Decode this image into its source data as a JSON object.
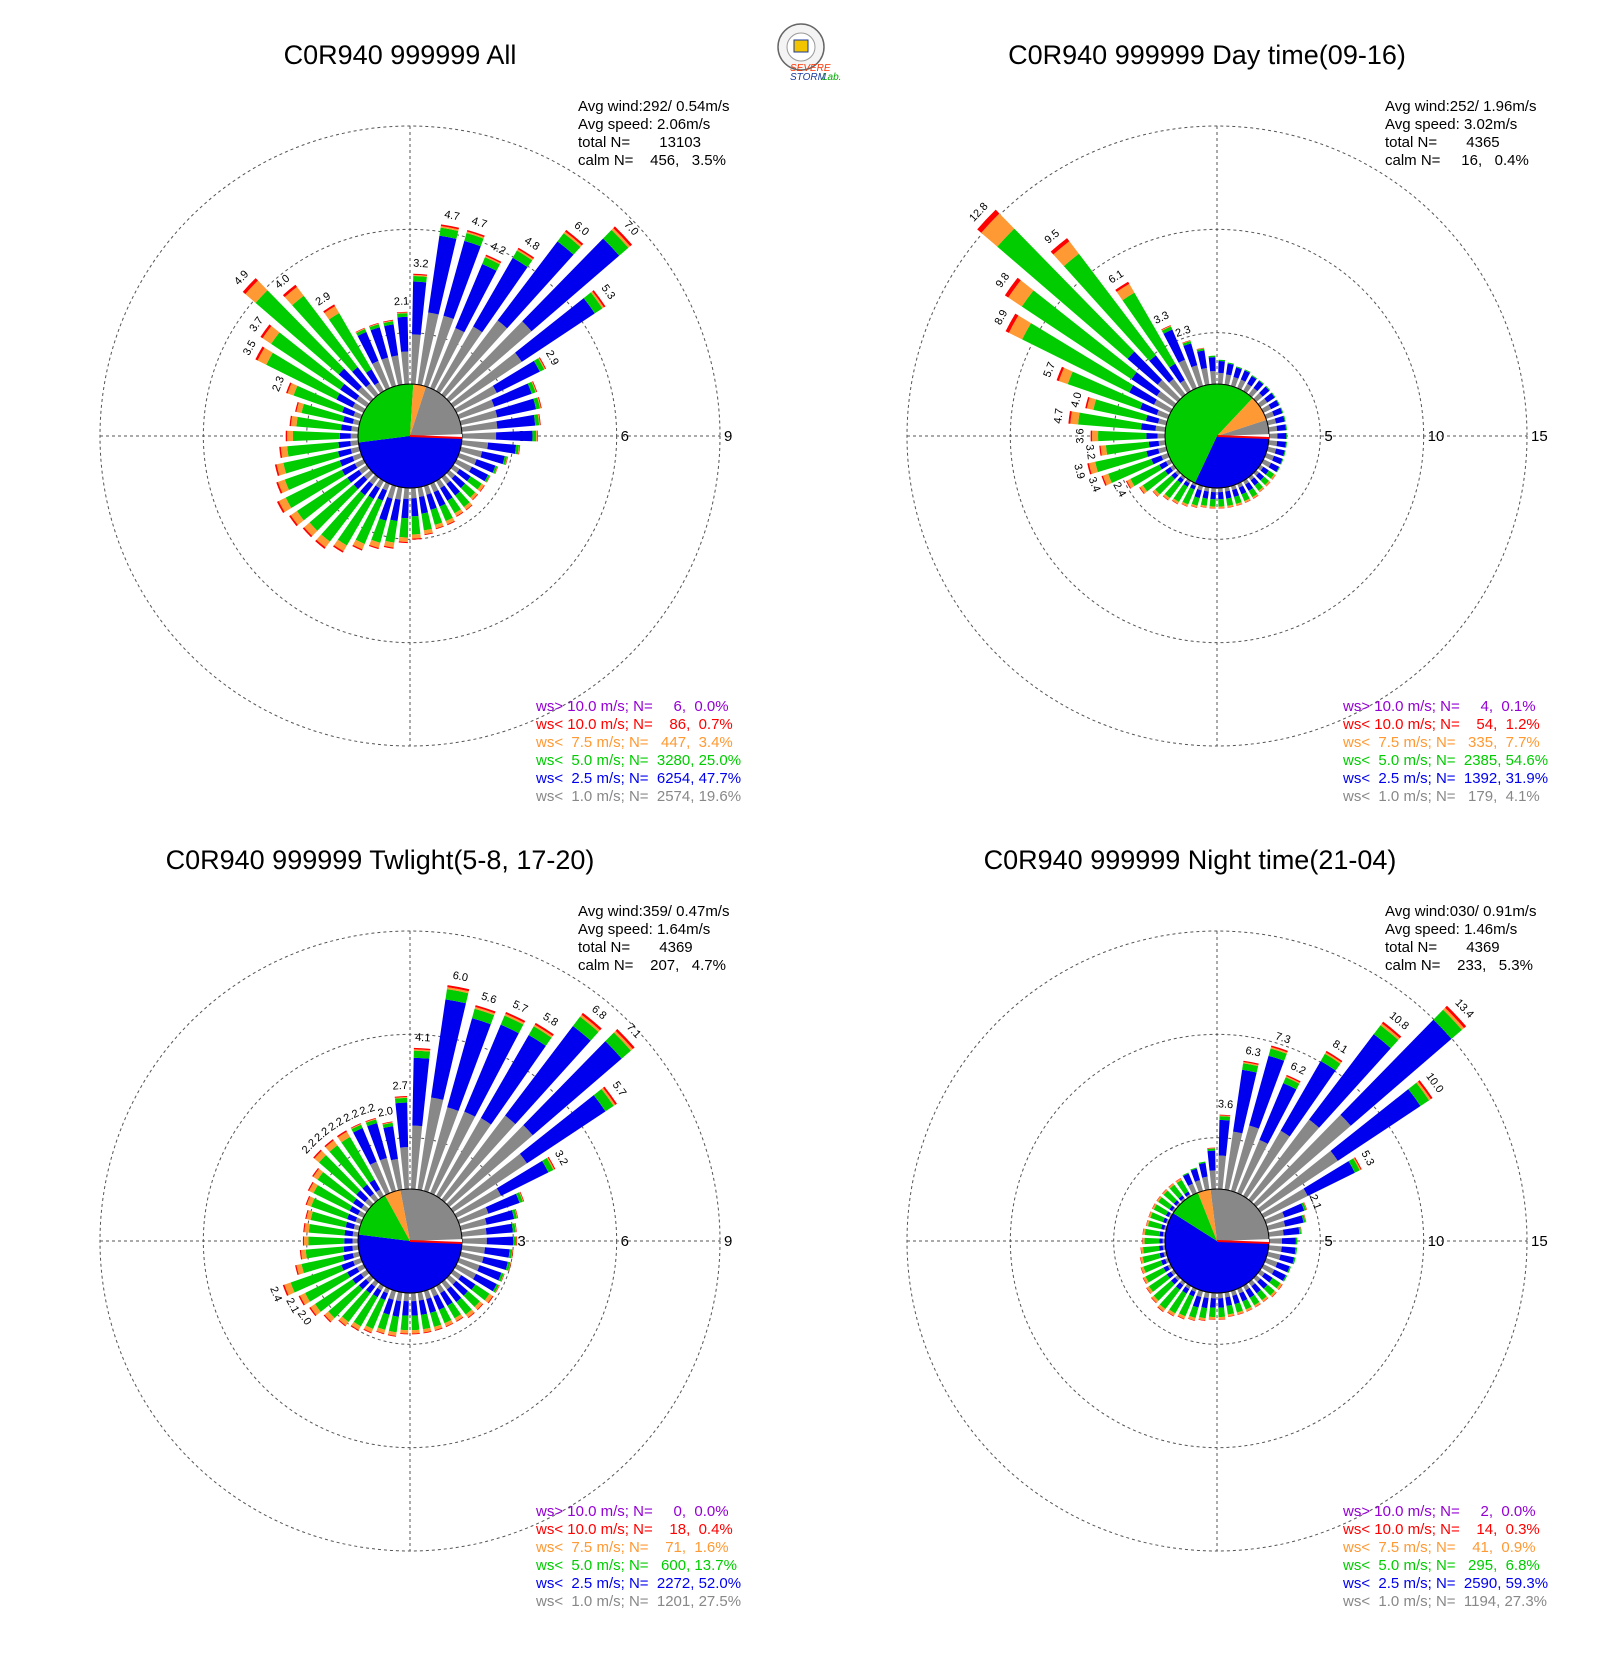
{
  "colors": {
    "purple": "#9400d3",
    "red": "#ff0000",
    "orange": "#ff9933",
    "green": "#00cc00",
    "blue": "#0000ee",
    "gray": "#888888",
    "white": "#ffffff"
  },
  "logo": {
    "line1": "SEVERE",
    "line2": "STORM",
    "line3": "Lab."
  },
  "chart_data": [
    {
      "type": "wind-rose",
      "title": "C0R940 999999 All",
      "stats": {
        "avg_wind": "Avg wind:292/ 0.54m/s",
        "avg_speed": "Avg speed: 2.06m/s",
        "total": "total N=       13103",
        "calm": "calm N=    456,   3.5%"
      },
      "ring_max": 9,
      "ring_labels": [
        "3",
        "6",
        "9"
      ],
      "calm_frac": {
        "gray": 0.2,
        "blue": 0.48,
        "green": 0.28,
        "other": 0.04
      },
      "dir_totals": [
        2.2,
        2.3,
        2.4,
        2.4,
        2.9,
        5.3,
        7.0,
        6.0,
        4.8,
        4.2,
        4.7,
        4.7,
        3.2,
        2.1,
        1.9,
        1.9,
        1.9,
        2.9,
        4.0,
        4.9,
        3.7,
        3.5,
        2.3,
        1.9,
        2.0,
        2.1,
        2.3,
        2.5,
        2.6,
        2.8,
        2.7,
        2.6,
        2.6,
        2.4,
        2.1,
        1.9,
        1.8,
        1.6,
        1.5,
        1.4,
        1.3,
        1.3,
        1.2,
        1.2,
        1.1,
        1.1,
        1.1,
        1.2,
        1.4,
        1.7
      ],
      "labeled": [
        {
          "i": 4,
          "text": "2.9"
        },
        {
          "i": 5,
          "text": "5.3"
        },
        {
          "i": 6,
          "text": "7.0"
        },
        {
          "i": 7,
          "text": "6.0"
        },
        {
          "i": 8,
          "text": "4.8"
        },
        {
          "i": 9,
          "text": "4.2"
        },
        {
          "i": 10,
          "text": "4.7"
        },
        {
          "i": 11,
          "text": "4.7"
        },
        {
          "i": 12,
          "text": "3.2"
        },
        {
          "i": 13,
          "text": "2.1"
        },
        {
          "i": 17,
          "text": "2.9"
        },
        {
          "i": 18,
          "text": "4.0"
        },
        {
          "i": 19,
          "text": "4.9"
        },
        {
          "i": 20,
          "text": "3.7"
        },
        {
          "i": 21,
          "text": "3.5"
        },
        {
          "i": 22,
          "text": "2.3"
        }
      ],
      "legend": [
        {
          "text": "ws> 10.0 m/s; N=     6,  0.0%",
          "color": "purple"
        },
        {
          "text": "ws< 10.0 m/s; N=    86,  0.7%",
          "color": "red"
        },
        {
          "text": "ws<  7.5 m/s; N=   447,  3.4%",
          "color": "orange"
        },
        {
          "text": "ws<  5.0 m/s; N=  3280, 25.0%",
          "color": "green"
        },
        {
          "text": "ws<  2.5 m/s; N=  6254, 47.7%",
          "color": "blue"
        },
        {
          "text": "ws<  1.0 m/s; N=  2574, 19.6%",
          "color": "gray"
        }
      ]
    },
    {
      "type": "wind-rose",
      "title": "C0R940 999999 Day time(09-16)",
      "stats": {
        "avg_wind": "Avg wind:252/ 1.96m/s",
        "avg_speed": "Avg speed: 3.02m/s",
        "total": "total N=       4365",
        "calm": "calm N=     16,   0.4%"
      },
      "ring_max": 15,
      "ring_labels": [
        "5",
        "10",
        "15"
      ],
      "calm_frac": {
        "gray": 0.05,
        "blue": 0.32,
        "green": 0.55,
        "other": 0.08
      },
      "dir_totals": [
        0.9,
        0.9,
        0.9,
        0.9,
        0.9,
        0.9,
        0.9,
        0.9,
        0.9,
        1.0,
        1.0,
        1.1,
        1.2,
        1.4,
        1.8,
        2.3,
        3.3,
        6.1,
        9.5,
        12.8,
        9.8,
        8.9,
        5.7,
        4.0,
        4.7,
        3.6,
        3.2,
        3.9,
        3.4,
        2.4,
        2.0,
        1.6,
        1.4,
        1.3,
        1.2,
        1.1,
        1.0,
        1.0,
        1.0,
        1.0,
        1.0,
        1.0,
        1.0,
        0.9,
        0.9,
        0.9,
        0.9,
        0.9,
        0.9,
        0.9
      ],
      "labeled": [
        {
          "i": 15,
          "text": "2.3"
        },
        {
          "i": 16,
          "text": "3.3"
        },
        {
          "i": 17,
          "text": "6.1"
        },
        {
          "i": 18,
          "text": "9.5"
        },
        {
          "i": 19,
          "text": "12.8"
        },
        {
          "i": 20,
          "text": "9.8"
        },
        {
          "i": 21,
          "text": "8.9"
        },
        {
          "i": 22,
          "text": "5.7"
        },
        {
          "i": 23,
          "text": "4.0"
        },
        {
          "i": 24,
          "text": "4.7"
        },
        {
          "i": 25,
          "text": "3.6"
        },
        {
          "i": 26,
          "text": "3.2"
        },
        {
          "i": 27,
          "text": "3.9"
        },
        {
          "i": 28,
          "text": "3.4"
        },
        {
          "i": 29,
          "text": "2.4"
        }
      ],
      "legend": [
        {
          "text": "ws> 10.0 m/s; N=     4,  0.1%",
          "color": "purple"
        },
        {
          "text": "ws< 10.0 m/s; N=    54,  1.2%",
          "color": "red"
        },
        {
          "text": "ws<  7.5 m/s; N=   335,  7.7%",
          "color": "orange"
        },
        {
          "text": "ws<  5.0 m/s; N=  2385, 54.6%",
          "color": "green"
        },
        {
          "text": "ws<  2.5 m/s; N=  1392, 31.9%",
          "color": "blue"
        },
        {
          "text": "ws<  1.0 m/s; N=   179,  4.1%",
          "color": "gray"
        }
      ]
    },
    {
      "type": "wind-rose",
      "title": "C0R940 999999 Twlight(5-8, 17-20)",
      "stats": {
        "avg_wind": "Avg wind:359/ 0.47m/s",
        "avg_speed": "Avg speed: 1.64m/s",
        "total": "total N=       4369",
        "calm": "calm N=    207,   4.7%"
      },
      "ring_max": 9,
      "ring_labels": [
        "3",
        "6",
        "9"
      ],
      "calm_frac": {
        "gray": 0.28,
        "blue": 0.52,
        "green": 0.15,
        "other": 0.05
      },
      "dir_totals": [
        1.6,
        1.6,
        1.7,
        2.0,
        3.2,
        5.7,
        7.1,
        6.8,
        5.8,
        5.7,
        5.6,
        6.0,
        4.1,
        2.7,
        2.0,
        2.2,
        2.2,
        2.2,
        2.2,
        2.2,
        1.9,
        1.8,
        1.7,
        1.6,
        1.6,
        1.6,
        1.7,
        1.9,
        2.4,
        2.1,
        2.0,
        1.8,
        1.6,
        1.5,
        1.4,
        1.3,
        1.3,
        1.2,
        1.2,
        1.2,
        1.2,
        1.2,
        1.2,
        1.3,
        1.3,
        1.4,
        1.4,
        1.4,
        1.5,
        1.5
      ],
      "labeled": [
        {
          "i": 4,
          "text": "3.2"
        },
        {
          "i": 5,
          "text": "5.7"
        },
        {
          "i": 6,
          "text": "7.1"
        },
        {
          "i": 7,
          "text": "6.8"
        },
        {
          "i": 8,
          "text": "5.8"
        },
        {
          "i": 9,
          "text": "5.7"
        },
        {
          "i": 10,
          "text": "5.6"
        },
        {
          "i": 11,
          "text": "6.0"
        },
        {
          "i": 12,
          "text": "4.1"
        },
        {
          "i": 13,
          "text": "2.7"
        },
        {
          "i": 14,
          "text": "2.0"
        },
        {
          "i": 15,
          "text": "2.2"
        },
        {
          "i": 16,
          "text": "2.2"
        },
        {
          "i": 17,
          "text": "2.2"
        },
        {
          "i": 18,
          "text": "2.2"
        },
        {
          "i": 19,
          "text": "2.2"
        },
        {
          "i": 28,
          "text": "2.4"
        },
        {
          "i": 29,
          "text": "2.1"
        },
        {
          "i": 30,
          "text": "2.0"
        }
      ],
      "legend": [
        {
          "text": "ws> 10.0 m/s; N=     0,  0.0%",
          "color": "purple"
        },
        {
          "text": "ws< 10.0 m/s; N=    18,  0.4%",
          "color": "red"
        },
        {
          "text": "ws<  7.5 m/s; N=    71,  1.6%",
          "color": "orange"
        },
        {
          "text": "ws<  5.0 m/s; N=   600, 13.7%",
          "color": "green"
        },
        {
          "text": "ws<  2.5 m/s; N=  2272, 52.0%",
          "color": "blue"
        },
        {
          "text": "ws<  1.0 m/s; N=  1201, 27.5%",
          "color": "gray"
        }
      ]
    },
    {
      "type": "wind-rose",
      "title": "C0R940 999999 Night time(21-04)",
      "stats": {
        "avg_wind": "Avg wind:030/ 0.91m/s",
        "avg_speed": "Avg speed: 1.46m/s",
        "total": "total N=       4369",
        "calm": "calm N=    233,   5.3%"
      },
      "ring_max": 15,
      "ring_labels": [
        "5",
        "10",
        "15"
      ],
      "calm_frac": {
        "gray": 0.27,
        "blue": 0.59,
        "green": 0.1,
        "other": 0.04
      },
      "dir_totals": [
        1.4,
        1.6,
        1.9,
        2.1,
        5.3,
        10.0,
        13.4,
        10.8,
        8.1,
        6.2,
        7.3,
        6.3,
        3.6,
        2.0,
        1.4,
        1.2,
        1.1,
        1.0,
        1.0,
        1.0,
        1.0,
        1.0,
        1.0,
        1.0,
        1.1,
        1.1,
        1.2,
        1.3,
        1.4,
        1.5,
        1.6,
        1.7,
        1.8,
        1.7,
        1.6,
        1.5,
        1.4,
        1.3,
        1.3,
        1.2,
        1.2,
        1.2,
        1.2,
        1.2,
        1.3,
        1.3,
        1.3,
        1.3,
        1.4,
        1.4
      ],
      "labeled": [
        {
          "i": 3,
          "text": "2.1"
        },
        {
          "i": 4,
          "text": "5.3"
        },
        {
          "i": 5,
          "text": "10.0"
        },
        {
          "i": 6,
          "text": "13.4"
        },
        {
          "i": 7,
          "text": "10.8"
        },
        {
          "i": 8,
          "text": "8.1"
        },
        {
          "i": 9,
          "text": "6.2"
        },
        {
          "i": 10,
          "text": "7.3"
        },
        {
          "i": 11,
          "text": "6.3"
        },
        {
          "i": 12,
          "text": "3.6"
        }
      ],
      "legend": [
        {
          "text": "ws> 10.0 m/s; N=     2,  0.0%",
          "color": "purple"
        },
        {
          "text": "ws< 10.0 m/s; N=    14,  0.3%",
          "color": "red"
        },
        {
          "text": "ws<  7.5 m/s; N=    41,  0.9%",
          "color": "orange"
        },
        {
          "text": "ws<  5.0 m/s; N=   295,  6.8%",
          "color": "green"
        },
        {
          "text": "ws<  2.5 m/s; N=  2590, 59.3%",
          "color": "blue"
        },
        {
          "text": "ws<  1.0 m/s; N=  1194, 27.3%",
          "color": "gray"
        }
      ]
    }
  ]
}
